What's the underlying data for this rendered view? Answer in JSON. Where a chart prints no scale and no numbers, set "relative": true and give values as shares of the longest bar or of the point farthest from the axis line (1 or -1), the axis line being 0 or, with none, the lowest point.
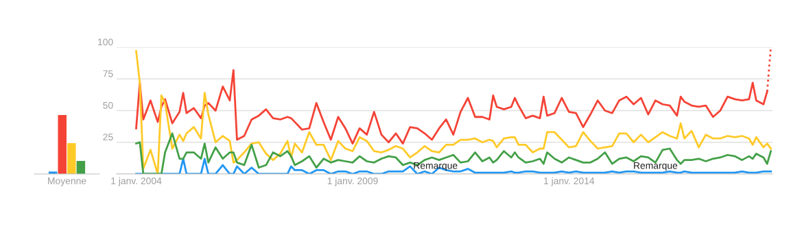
{
  "chart_data": [
    {
      "type": "bar",
      "relative": true,
      "categories": [
        "Moyenne"
      ],
      "series": [
        {
          "color": "#2196f3",
          "values": [
            0.04
          ]
        },
        {
          "color": "#f44336",
          "values": [
            1
          ]
        },
        {
          "color": "#ffca28",
          "values": [
            0.52
          ]
        },
        {
          "color": "#43a047",
          "values": [
            0.22
          ]
        }
      ]
    },
    {
      "type": "line",
      "grid": "y",
      "xlim": [
        "2003-07-20",
        "2018-09-15"
      ],
      "ylim": [
        0,
        100
      ],
      "yticks": [
        {
          "value": 0,
          "label": null
        },
        25,
        50,
        75,
        100
      ],
      "xticks": [
        {
          "value": "2004-01-01",
          "label": "1 janv. 2004"
        },
        {
          "value": "2009-01-01",
          "label": "1 janv. 2009"
        },
        {
          "value": "2014-01-01",
          "label": "1 janv. 2014"
        }
      ],
      "annotations": [
        {
          "text": "Remarque",
          "x": "2010-12",
          "y": 6
        },
        {
          "text": "Remarque",
          "x": "2016-01",
          "y": 6
        }
      ],
      "x": [
        "2004-01",
        "2004-02",
        "2004-03",
        "2004-05",
        "2004-07",
        "2004-08",
        "2004-09",
        "2004-11",
        "2005-01",
        "2005-02",
        "2005-03",
        "2005-05",
        "2005-07",
        "2005-08",
        "2005-09",
        "2005-11",
        "2006-01",
        "2006-03",
        "2006-04",
        "2006-05",
        "2006-07",
        "2006-09",
        "2006-11",
        "2007-01",
        "2007-03",
        "2007-05",
        "2007-07",
        "2007-08",
        "2007-09",
        "2007-11",
        "2008-01",
        "2008-03",
        "2008-05",
        "2008-07",
        "2008-09",
        "2008-11",
        "2009-01",
        "2009-03",
        "2009-05",
        "2009-07",
        "2009-09",
        "2009-11",
        "2010-01",
        "2010-03",
        "2010-05",
        "2010-07",
        "2010-09",
        "2010-11",
        "2011-01",
        "2011-03",
        "2011-05",
        "2011-07",
        "2011-09",
        "2011-11",
        "2012-01",
        "2012-03",
        "2012-04",
        "2012-05",
        "2012-07",
        "2012-09",
        "2012-10",
        "2012-11",
        "2013-01",
        "2013-03",
        "2013-05",
        "2013-06",
        "2013-07",
        "2013-09",
        "2013-11",
        "2014-01",
        "2014-03",
        "2014-05",
        "2014-07",
        "2014-09",
        "2014-11",
        "2015-01",
        "2015-03",
        "2015-05",
        "2015-07",
        "2015-09",
        "2015-11",
        "2016-01",
        "2016-03",
        "2016-05",
        "2016-07",
        "2016-08",
        "2016-09",
        "2016-11",
        "2017-01",
        "2017-03",
        "2017-05",
        "2017-07",
        "2017-09",
        "2017-11",
        "2018-01",
        "2018-03",
        "2018-04",
        "2018-05",
        "2018-07",
        "2018-08",
        "2018-09"
      ],
      "series": [
        {
          "color": "#2196f3",
          "values": [
            0,
            0,
            0,
            0,
            0,
            0,
            0,
            0,
            0,
            12,
            0,
            0,
            0,
            12,
            0,
            0,
            7,
            0,
            0,
            6,
            0,
            5,
            0,
            0,
            0,
            0,
            0,
            6,
            3,
            3,
            0,
            3,
            3,
            0,
            2,
            2,
            0,
            2,
            2,
            0,
            0,
            2,
            2,
            2,
            6,
            0,
            2,
            0,
            5,
            3,
            2,
            2,
            4,
            1,
            1,
            1,
            1,
            1,
            1,
            2,
            1,
            1,
            2,
            2,
            1,
            1,
            1,
            1,
            2,
            1,
            2,
            1,
            1,
            1,
            1,
            2,
            1,
            2,
            2,
            1,
            1,
            1,
            1,
            2,
            1,
            1,
            2,
            1,
            1,
            1,
            1,
            1,
            1,
            1,
            2,
            1,
            1,
            1,
            2,
            2,
            2
          ]
        },
        {
          "color": "#f44336",
          "values": [
            36,
            72,
            43,
            58,
            41,
            53,
            59,
            40,
            49,
            64,
            48,
            52,
            44,
            54,
            56,
            50,
            69,
            58,
            82,
            27,
            30,
            43,
            46,
            51,
            44,
            43,
            45,
            44,
            41,
            35,
            36,
            56,
            41,
            27,
            45,
            36,
            24,
            36,
            31,
            49,
            31,
            25,
            32,
            24,
            37,
            36,
            32,
            27,
            36,
            43,
            31,
            49,
            60,
            45,
            45,
            43,
            62,
            53,
            51,
            53,
            60,
            54,
            44,
            46,
            44,
            61,
            46,
            48,
            60,
            49,
            48,
            37,
            47,
            58,
            50,
            48,
            58,
            61,
            55,
            60,
            47,
            58,
            55,
            54,
            46,
            61,
            57,
            54,
            53,
            54,
            45,
            50,
            61,
            59,
            58,
            59,
            72,
            58,
            55,
            65,
            null
          ]
        },
        {
          "color": "#f44336",
          "x": [
            "2018-08",
            "2018-09"
          ],
          "values": [
            65,
            100
          ],
          "line_style": "dotted"
        },
        {
          "color": "#ffca28",
          "values": [
            97,
            72,
            4,
            19,
            0,
            62,
            56,
            20,
            31,
            26,
            32,
            37,
            28,
            64,
            47,
            25,
            30,
            26,
            9,
            11,
            17,
            24,
            25,
            16,
            11,
            16,
            26,
            13,
            24,
            17,
            33,
            23,
            23,
            11,
            26,
            20,
            18,
            29,
            26,
            18,
            17,
            19,
            22,
            20,
            13,
            17,
            22,
            18,
            17,
            23,
            23,
            27,
            27,
            28,
            25,
            27,
            26,
            21,
            28,
            29,
            29,
            23,
            23,
            17,
            20,
            20,
            33,
            33,
            27,
            21,
            22,
            33,
            26,
            20,
            21,
            22,
            32,
            32,
            25,
            31,
            25,
            29,
            33,
            30,
            28,
            40,
            28,
            34,
            21,
            31,
            28,
            28,
            30,
            29,
            30,
            28,
            23,
            29,
            21,
            24,
            20
          ]
        },
        {
          "color": "#43a047",
          "values": [
            24,
            25,
            0,
            0,
            0,
            0,
            17,
            32,
            12,
            12,
            17,
            17,
            12,
            24,
            9,
            21,
            12,
            17,
            17,
            9,
            7,
            23,
            5,
            7,
            17,
            14,
            18,
            14,
            7,
            10,
            14,
            5,
            12,
            9,
            11,
            10,
            9,
            14,
            10,
            9,
            12,
            14,
            13,
            7,
            9,
            7,
            11,
            13,
            11,
            13,
            15,
            9,
            10,
            17,
            10,
            13,
            9,
            11,
            18,
            13,
            17,
            13,
            9,
            10,
            12,
            8,
            17,
            12,
            9,
            13,
            11,
            9,
            9,
            12,
            17,
            8,
            12,
            13,
            10,
            14,
            13,
            9,
            19,
            20,
            11,
            8,
            11,
            11,
            12,
            10,
            12,
            13,
            15,
            14,
            11,
            14,
            12,
            16,
            13,
            8,
            18
          ]
        }
      ]
    }
  ]
}
